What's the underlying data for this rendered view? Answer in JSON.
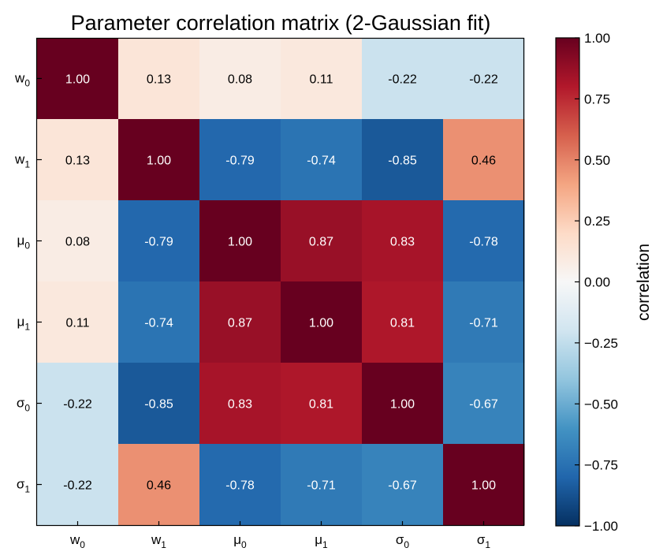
{
  "chart_data": {
    "type": "heatmap",
    "title": "Parameter correlation matrix (2-Gaussian fit)",
    "row_labels": [
      {
        "base": "w",
        "sub": "0"
      },
      {
        "base": "w",
        "sub": "1"
      },
      {
        "base": "μ",
        "sub": "0"
      },
      {
        "base": "μ",
        "sub": "1"
      },
      {
        "base": "σ",
        "sub": "0"
      },
      {
        "base": "σ",
        "sub": "1"
      }
    ],
    "col_labels": [
      {
        "base": "w",
        "sub": "0"
      },
      {
        "base": "w",
        "sub": "1"
      },
      {
        "base": "μ",
        "sub": "0"
      },
      {
        "base": "μ",
        "sub": "1"
      },
      {
        "base": "σ",
        "sub": "0"
      },
      {
        "base": "σ",
        "sub": "1"
      }
    ],
    "values": [
      [
        1.0,
        0.13,
        0.08,
        0.11,
        -0.22,
        -0.22
      ],
      [
        0.13,
        1.0,
        -0.79,
        -0.74,
        -0.85,
        0.46
      ],
      [
        0.08,
        -0.79,
        1.0,
        0.87,
        0.83,
        -0.78
      ],
      [
        0.11,
        -0.74,
        0.87,
        1.0,
        0.81,
        -0.71
      ],
      [
        -0.22,
        -0.85,
        0.83,
        0.81,
        1.0,
        -0.67
      ],
      [
        -0.22,
        0.46,
        -0.78,
        -0.71,
        -0.67,
        1.0
      ]
    ],
    "value_format": "2 decimals",
    "colormap": "RdBu_r",
    "vmin": -1.0,
    "vmax": 1.0,
    "colorbar": {
      "label": "correlation",
      "ticks": [
        1.0,
        0.75,
        0.5,
        0.25,
        0.0,
        -0.25,
        -0.5,
        -0.75,
        -1.0
      ],
      "tick_labels": [
        "1.00",
        "0.75",
        "0.50",
        "0.25",
        "0.00",
        "−0.25",
        "−0.50",
        "−0.75",
        "−1.00"
      ],
      "placement": "right"
    },
    "grid": false
  }
}
